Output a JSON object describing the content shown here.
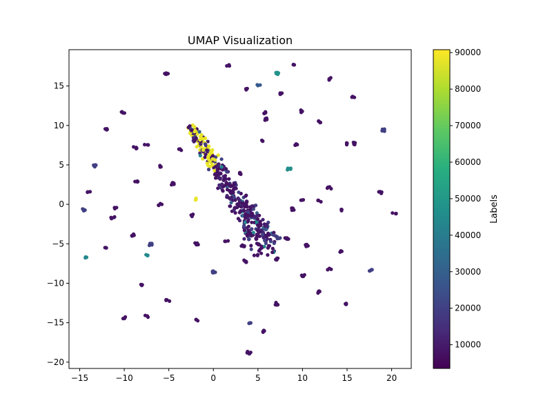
{
  "chart_data": {
    "type": "scatter",
    "title": "UMAP Visualization",
    "xlabel": "",
    "ylabel": "",
    "xlim": [
      -16.2,
      22.2
    ],
    "ylim": [
      -20.8,
      19.6
    ],
    "x_ticks": [
      -15,
      -10,
      -5,
      0,
      5,
      10,
      15,
      20
    ],
    "y_ticks": [
      -20,
      -15,
      -10,
      -5,
      0,
      5,
      10,
      15
    ],
    "grid": false,
    "colormap": "viridis",
    "colorbar": {
      "label": "Labels",
      "range": [
        3500,
        90800
      ],
      "ticks": [
        10000,
        20000,
        30000,
        40000,
        50000,
        60000,
        70000,
        80000,
        90000
      ]
    },
    "clusters": [
      {
        "x": -5.3,
        "y": 16.6,
        "label": 8000
      },
      {
        "x": 1.7,
        "y": 17.6,
        "label": 8000
      },
      {
        "x": 9.0,
        "y": 17.6,
        "label": 8000
      },
      {
        "x": 7.1,
        "y": 16.6,
        "label": 48000
      },
      {
        "x": 5.1,
        "y": 15.2,
        "label": 28000
      },
      {
        "x": 3.6,
        "y": 14.6,
        "label": 8000
      },
      {
        "x": 13.0,
        "y": 15.9,
        "label": 8000
      },
      {
        "x": 15.7,
        "y": 13.7,
        "label": 8000
      },
      {
        "x": 7.6,
        "y": 14.0,
        "label": 8000
      },
      {
        "x": -10.1,
        "y": 11.6,
        "label": 8000
      },
      {
        "x": 5.7,
        "y": 11.6,
        "label": 8000
      },
      {
        "x": 9.8,
        "y": 11.8,
        "label": 8000
      },
      {
        "x": 11.9,
        "y": 10.5,
        "label": 8000
      },
      {
        "x": -12.1,
        "y": 9.5,
        "label": 8000
      },
      {
        "x": 19.1,
        "y": 9.4,
        "label": 20000
      },
      {
        "x": -7.5,
        "y": 7.6,
        "label": 8000
      },
      {
        "x": -8.8,
        "y": 7.2,
        "label": 8000
      },
      {
        "x": -3.7,
        "y": 7.0,
        "label": 8000
      },
      {
        "x": 5.6,
        "y": 8.0,
        "label": 8000
      },
      {
        "x": 8.5,
        "y": 4.5,
        "label": 46000
      },
      {
        "x": -13.3,
        "y": 4.9,
        "label": 20000
      },
      {
        "x": -5.9,
        "y": 4.8,
        "label": 8000
      },
      {
        "x": -4.6,
        "y": 2.6,
        "label": 8000
      },
      {
        "x": -8.6,
        "y": 2.8,
        "label": 8000
      },
      {
        "x": -14.0,
        "y": 1.6,
        "label": 8000
      },
      {
        "x": -1.8,
        "y": 0.7,
        "label": 88000
      },
      {
        "x": -6.0,
        "y": 0.0,
        "label": 8000
      },
      {
        "x": -10.9,
        "y": -0.4,
        "label": 8000
      },
      {
        "x": -14.6,
        "y": -0.7,
        "label": 20000
      },
      {
        "x": -11.3,
        "y": -1.7,
        "label": 8000
      },
      {
        "x": -2.3,
        "y": -1.4,
        "label": 8000
      },
      {
        "x": 9.0,
        "y": -0.6,
        "label": 8000
      },
      {
        "x": 10.0,
        "y": 0.6,
        "label": 8000
      },
      {
        "x": 11.9,
        "y": 0.4,
        "label": 8000
      },
      {
        "x": 13.0,
        "y": 2.1,
        "label": 8000
      },
      {
        "x": 14.4,
        "y": -0.7,
        "label": 8000
      },
      {
        "x": 18.7,
        "y": 1.5,
        "label": 8000
      },
      {
        "x": 20.3,
        "y": -1.2,
        "label": 8000
      },
      {
        "x": -9.1,
        "y": -3.9,
        "label": 8000
      },
      {
        "x": -12.1,
        "y": -5.4,
        "label": 8000
      },
      {
        "x": -7.1,
        "y": -5.1,
        "label": 20000
      },
      {
        "x": -1.9,
        "y": -5.0,
        "label": 8000
      },
      {
        "x": 1.5,
        "y": -4.6,
        "label": 8000
      },
      {
        "x": 7.3,
        "y": -4.2,
        "label": 20000
      },
      {
        "x": 8.2,
        "y": -4.3,
        "label": 8000
      },
      {
        "x": 10.5,
        "y": -5.2,
        "label": 8000
      },
      {
        "x": 14.4,
        "y": -5.9,
        "label": 8000
      },
      {
        "x": -14.3,
        "y": -6.8,
        "label": 44000
      },
      {
        "x": -7.4,
        "y": -6.5,
        "label": 44000
      },
      {
        "x": 7.1,
        "y": -6.9,
        "label": 8000
      },
      {
        "x": 13.0,
        "y": -8.2,
        "label": 8000
      },
      {
        "x": 17.7,
        "y": -8.3,
        "label": 20000
      },
      {
        "x": 0.0,
        "y": -8.6,
        "label": 20000
      },
      {
        "x": 10.0,
        "y": -9.0,
        "label": 8000
      },
      {
        "x": -8.0,
        "y": -10.2,
        "label": 8000
      },
      {
        "x": 11.9,
        "y": -11.1,
        "label": 8000
      },
      {
        "x": -5.1,
        "y": -12.2,
        "label": 8000
      },
      {
        "x": 7.1,
        "y": -12.6,
        "label": 8000
      },
      {
        "x": 15.0,
        "y": -12.7,
        "label": 8000
      },
      {
        "x": -10.0,
        "y": -14.4,
        "label": 8000
      },
      {
        "x": -7.5,
        "y": -14.2,
        "label": 8000
      },
      {
        "x": -1.8,
        "y": -14.7,
        "label": 8000
      },
      {
        "x": 4.0,
        "y": -15.1,
        "label": 20000
      },
      {
        "x": 5.5,
        "y": -16.1,
        "label": 8000
      },
      {
        "x": 4.0,
        "y": -18.8,
        "label": 8000
      },
      {
        "x": 5.8,
        "y": 10.8,
        "label": 8000
      },
      {
        "x": 9.2,
        "y": 7.6,
        "label": 8000
      },
      {
        "x": 14.8,
        "y": 7.7,
        "label": 8000
      },
      {
        "x": 15.8,
        "y": 7.7,
        "label": 8000
      },
      {
        "x": 3.0,
        "y": 3.9,
        "label": 8000
      },
      {
        "x": 2.0,
        "y": 1.6,
        "label": 8000
      },
      {
        "x": 3.5,
        "y": -7.2,
        "label": 8000
      },
      {
        "x": 3.3,
        "y": -5.3,
        "label": 8000
      }
    ],
    "main_band": {
      "start": [
        -2.5,
        9.8
      ],
      "end": [
        6.0,
        -5.5
      ],
      "width": 1.6,
      "labels": [
        8000,
        12000,
        20000,
        30000,
        44000,
        88000
      ]
    }
  }
}
